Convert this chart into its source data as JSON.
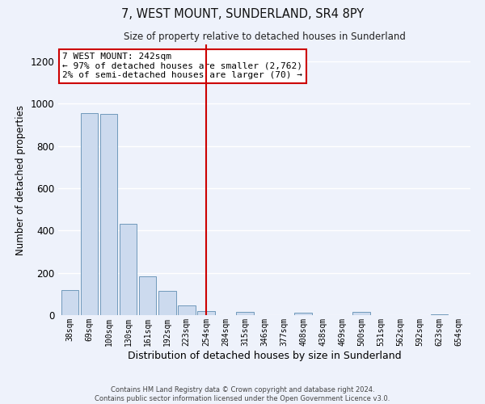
{
  "title": "7, WEST MOUNT, SUNDERLAND, SR4 8PY",
  "subtitle": "Size of property relative to detached houses in Sunderland",
  "xlabel": "Distribution of detached houses by size in Sunderland",
  "ylabel": "Number of detached properties",
  "bar_color": "#ccdaee",
  "bar_edge_color": "#7099bb",
  "bin_labels": [
    "38sqm",
    "69sqm",
    "100sqm",
    "130sqm",
    "161sqm",
    "192sqm",
    "223sqm",
    "254sqm",
    "284sqm",
    "315sqm",
    "346sqm",
    "377sqm",
    "408sqm",
    "438sqm",
    "469sqm",
    "500sqm",
    "531sqm",
    "562sqm",
    "592sqm",
    "623sqm",
    "654sqm"
  ],
  "bar_heights": [
    120,
    955,
    950,
    430,
    185,
    115,
    47,
    18,
    0,
    15,
    0,
    0,
    12,
    0,
    0,
    14,
    0,
    0,
    0,
    5,
    0
  ],
  "ylim": [
    0,
    1280
  ],
  "yticks": [
    0,
    200,
    400,
    600,
    800,
    1000,
    1200
  ],
  "vline_x": 7.0,
  "vline_color": "#cc0000",
  "annotation_title": "7 WEST MOUNT: 242sqm",
  "annotation_line1": "← 97% of detached houses are smaller (2,762)",
  "annotation_line2": "2% of semi-detached houses are larger (70) →",
  "annotation_box_color": "#ffffff",
  "annotation_border_color": "#cc0000",
  "footer_line1": "Contains HM Land Registry data © Crown copyright and database right 2024.",
  "footer_line2": "Contains public sector information licensed under the Open Government Licence v3.0.",
  "background_color": "#eef2fb",
  "grid_color": "#ffffff"
}
